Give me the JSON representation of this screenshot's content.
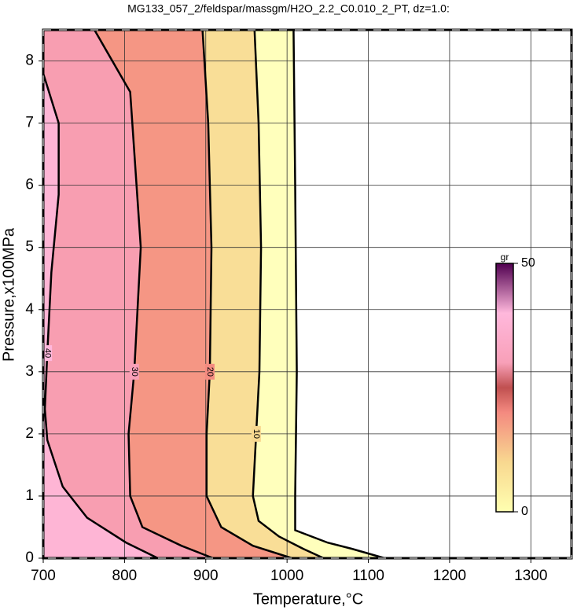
{
  "chart_data": {
    "type": "contour",
    "title": "MG133_057_2/feldspar/massgm/H2O_2.2_C0.010_2_PT, dz=1.0:",
    "xlabel": "Temperature,°C",
    "ylabel": "Pressure,x100MPa",
    "xlim": [
      700,
      1350
    ],
    "ylim": [
      0,
      8.5
    ],
    "xticks": [
      700,
      800,
      900,
      1000,
      1100,
      1200,
      1300
    ],
    "yticks": [
      0,
      1,
      2,
      3,
      4,
      5,
      6,
      7,
      8
    ],
    "grid": true,
    "contours": [
      {
        "level": 0,
        "x": [
          1008,
          1010,
          1012,
          1010,
          1010,
          1050,
          1080,
          1120
        ],
        "y": [
          8.5,
          6,
          3,
          1,
          0.45,
          0.25,
          0.15,
          0
        ]
      },
      {
        "level": 10,
        "x": [
          960,
          965,
          968,
          966,
          962,
          958,
          965,
          990,
          1020,
          1045
        ],
        "y": [
          8.5,
          7,
          5,
          3,
          2,
          1,
          0.6,
          0.35,
          0.15,
          0
        ]
      },
      {
        "level": 20,
        "x": [
          896,
          903,
          907,
          905,
          901,
          901,
          919,
          958,
          1006
        ],
        "y": [
          8.5,
          7,
          5,
          3,
          2,
          1,
          0.5,
          0.2,
          0
        ]
      },
      {
        "level": 30,
        "x": [
          763,
          807,
          820,
          812,
          805,
          807,
          822,
          870,
          909
        ],
        "y": [
          8.5,
          7.5,
          5,
          3,
          2,
          1,
          0.5,
          0.2,
          0
        ]
      },
      {
        "level": 40,
        "x": [
          700,
          719,
          719,
          710,
          705,
          702,
          705,
          724,
          754,
          802,
          841
        ],
        "y": [
          7.8,
          7,
          5.85,
          4.6,
          3.3,
          2.4,
          1.9,
          1.15,
          0.65,
          0.25,
          0
        ]
      }
    ],
    "colorbar": {
      "label": "gr",
      "lim": [
        0,
        50
      ],
      "ticks": [
        0,
        50
      ],
      "colormap": [
        {
          "value": 0,
          "color": "#ffffb0"
        },
        {
          "value": 10,
          "color": "#f8d890"
        },
        {
          "value": 20,
          "color": "#f48a80"
        },
        {
          "value": 25,
          "color": "#c05050"
        },
        {
          "value": 30,
          "color": "#f8a0b8"
        },
        {
          "value": 40,
          "color": "#ffb8dc"
        },
        {
          "value": 50,
          "color": "#500050"
        }
      ]
    }
  }
}
